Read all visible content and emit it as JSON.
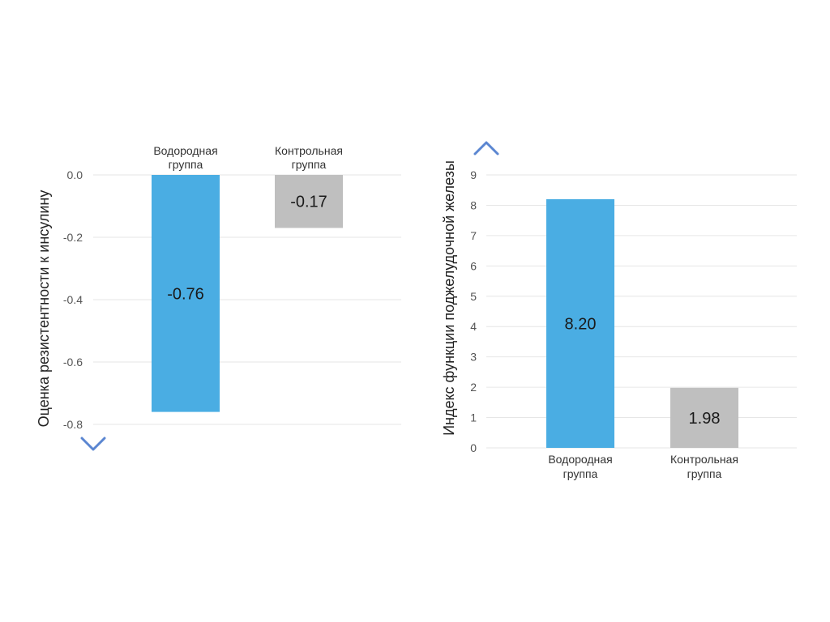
{
  "colors": {
    "hydrogen": "#4aade3",
    "control": "#bfbfbf",
    "arrow_top": "#ef7a7e",
    "arrow_bottom": "#5b86d1",
    "grid": "#e6e6e6"
  },
  "chart_data": [
    {
      "type": "bar",
      "title": "",
      "xlabel": "",
      "ylabel": "Оценка резистентности к инсулину",
      "categories": [
        "Водородная группа",
        "Контрольная группа"
      ],
      "category_lines": [
        [
          "Водородная",
          "группа"
        ],
        [
          "Контрольная",
          "группа"
        ]
      ],
      "values": [
        -0.76,
        -0.17
      ],
      "value_labels": [
        "-0.76",
        "-0.17"
      ],
      "bar_colors": [
        "#4aade3",
        "#bfbfbf"
      ],
      "ylim": [
        -0.8,
        0.0
      ],
      "yticks": [
        0.0,
        -0.2,
        -0.4,
        -0.6,
        -0.8
      ],
      "ytick_labels": [
        "0.0",
        "-0.2",
        "-0.4",
        "-0.6",
        "-0.8"
      ],
      "category_labels_position": "top",
      "axis_arrow": "down",
      "grid": true
    },
    {
      "type": "bar",
      "title": "",
      "xlabel": "",
      "ylabel": "Индекс функции поджелудочной железы",
      "categories": [
        "Водородная группа",
        "Контрольная группа"
      ],
      "category_lines": [
        [
          "Водородная",
          "группа"
        ],
        [
          "Контрольная",
          "группа"
        ]
      ],
      "values": [
        8.2,
        1.98
      ],
      "value_labels": [
        "8.20",
        "1.98"
      ],
      "bar_colors": [
        "#4aade3",
        "#bfbfbf"
      ],
      "ylim": [
        0,
        9
      ],
      "yticks": [
        0,
        1,
        2,
        3,
        4,
        5,
        6,
        7,
        8,
        9
      ],
      "ytick_labels": [
        "0",
        "1",
        "2",
        "3",
        "4",
        "5",
        "6",
        "7",
        "8",
        "9"
      ],
      "category_labels_position": "bottom",
      "axis_arrow": "up",
      "grid": true
    }
  ]
}
